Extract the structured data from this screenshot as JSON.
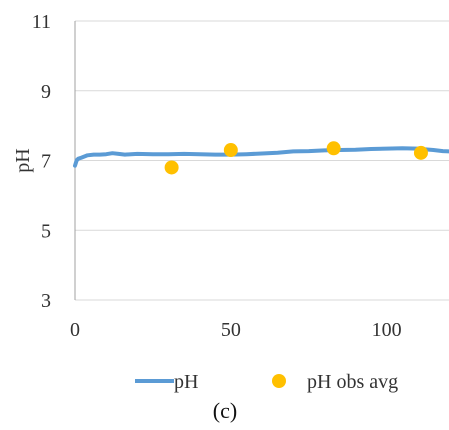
{
  "chart_data": {
    "type": "line",
    "title": "",
    "xlabel": "",
    "ylabel": "pH",
    "xlim": [
      0,
      120
    ],
    "ylim": [
      3,
      11
    ],
    "x_ticks": [
      0,
      50,
      100
    ],
    "y_ticks": [
      3,
      5,
      7,
      9,
      11
    ],
    "grid": "horizontal",
    "legend_position": "bottom",
    "caption": "(c)",
    "series": [
      {
        "name": "pH",
        "kind": "line",
        "color": "#5b9bd5",
        "x": [
          0,
          0.5,
          1,
          2,
          4,
          6,
          8,
          10,
          12,
          14,
          16,
          18,
          20,
          25,
          30,
          35,
          40,
          45,
          50,
          55,
          60,
          65,
          70,
          75,
          80,
          85,
          90,
          95,
          100,
          105,
          110,
          112,
          115,
          118,
          120
        ],
        "y": [
          6.85,
          7.0,
          7.05,
          7.08,
          7.15,
          7.17,
          7.17,
          7.18,
          7.21,
          7.19,
          7.17,
          7.18,
          7.19,
          7.18,
          7.18,
          7.19,
          7.18,
          7.17,
          7.17,
          7.18,
          7.2,
          7.22,
          7.26,
          7.27,
          7.29,
          7.3,
          7.31,
          7.33,
          7.34,
          7.35,
          7.34,
          7.32,
          7.3,
          7.27,
          7.26
        ]
      },
      {
        "name": "pH obs avg",
        "kind": "scatter",
        "color": "#ffc000",
        "x": [
          31,
          50,
          83,
          111
        ],
        "y": [
          6.8,
          7.3,
          7.35,
          7.22
        ]
      }
    ]
  }
}
